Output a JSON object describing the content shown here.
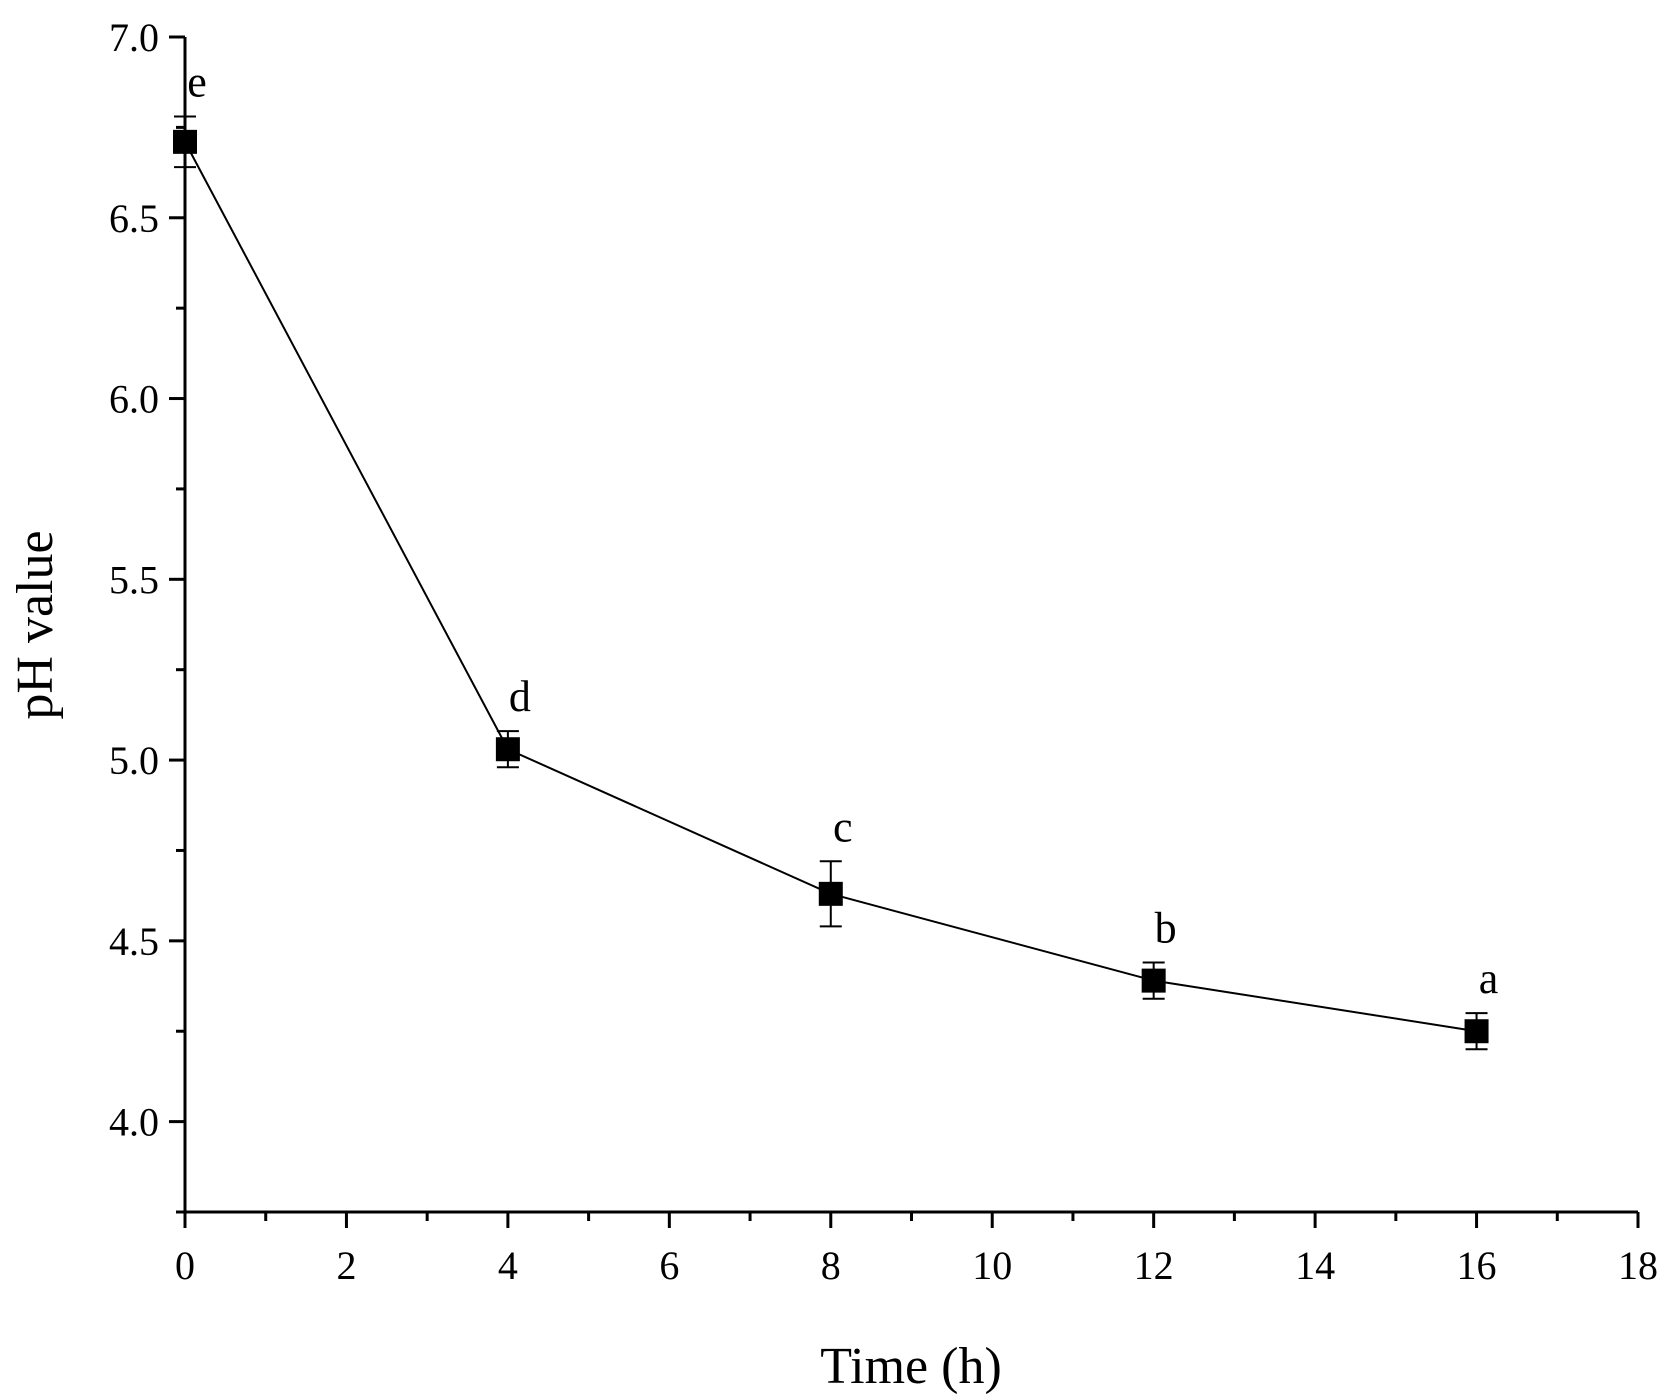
{
  "chart_data": {
    "type": "line",
    "title": "",
    "xlabel": "Time (h)",
    "ylabel": "pH value",
    "xlim": [
      0,
      18
    ],
    "ylim": [
      3.75,
      7.0
    ],
    "xticks": [
      0,
      2,
      4,
      6,
      8,
      10,
      12,
      14,
      16,
      18
    ],
    "xtick_labels": [
      "0",
      "2",
      "4",
      "6",
      "8",
      "10",
      "12",
      "14",
      "16",
      "18"
    ],
    "yticks": [
      4.0,
      4.5,
      5.0,
      5.5,
      6.0,
      6.5,
      7.0
    ],
    "ytick_labels": [
      "4.0",
      "4.5",
      "5.0",
      "5.5",
      "6.0",
      "6.5",
      "7.0"
    ],
    "grid": false,
    "marker": "square",
    "color": "#000000",
    "series": [
      {
        "x": [
          0,
          4,
          8,
          12,
          16
        ],
        "y": [
          6.71,
          5.03,
          4.63,
          4.39,
          4.25
        ],
        "error": [
          0.07,
          0.05,
          0.09,
          0.05,
          0.05
        ],
        "labels": [
          "e",
          "d",
          "c",
          "b",
          "a"
        ]
      }
    ]
  }
}
